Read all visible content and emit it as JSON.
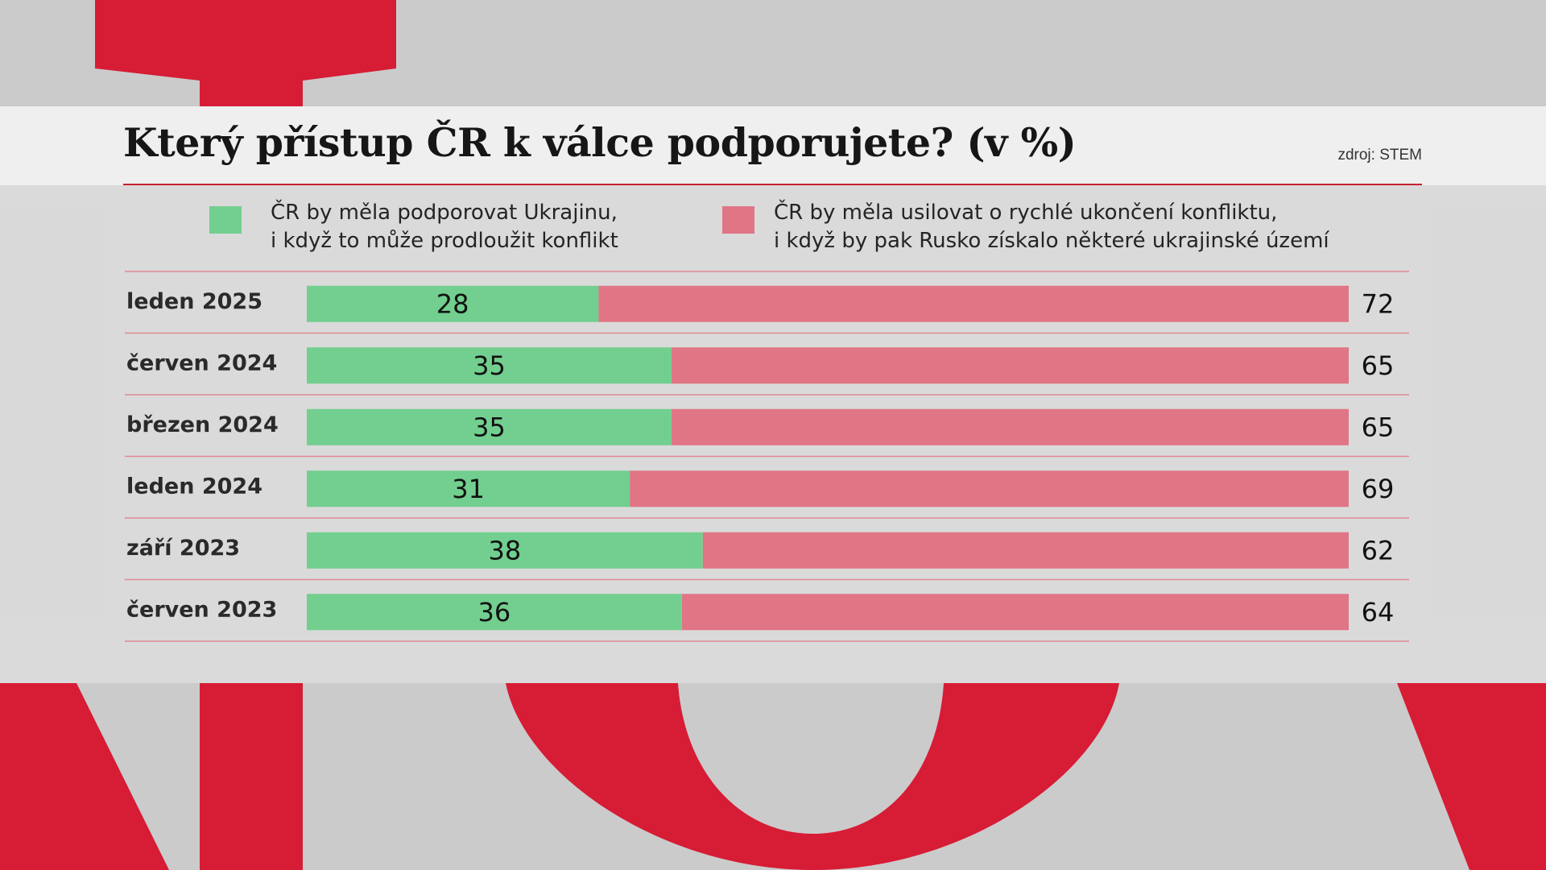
{
  "title": "Který přístup ČR k válce podporujete? (v %)",
  "source": "zdroj: STEM",
  "colors": {
    "support": "#72cf8f",
    "end": "#e07585",
    "brand_red": "#d71c36",
    "divider": "#e08a94"
  },
  "legend": [
    {
      "line1": "ČR by měla podporovat Ukrajinu,",
      "line2": "i když to může prodloužit konflikt",
      "color": "#72cf8f"
    },
    {
      "line1": "ČR by měla usilovat o rychlé ukončení konfliktu,",
      "line2": "i když by pak Rusko získalo některé ukrajinské území",
      "color": "#e07585"
    }
  ],
  "chart_data": {
    "type": "bar",
    "stacked": true,
    "orientation": "horizontal",
    "categories": [
      "leden 2025",
      "červen 2024",
      "březen 2024",
      "leden 2024",
      "září 2023",
      "červen 2023"
    ],
    "series": [
      {
        "name": "ČR by měla podporovat Ukrajinu, i když to může prodloužit konflikt",
        "values": [
          28,
          35,
          35,
          31,
          38,
          36
        ]
      },
      {
        "name": "ČR by měla usilovat o rychlé ukončení konfliktu, i když by pak Rusko získalo některé ukrajinské území",
        "values": [
          72,
          65,
          65,
          69,
          62,
          64
        ]
      }
    ],
    "title": "Který přístup ČR k válce podporujete? (v %)",
    "xlim": [
      0,
      100
    ]
  }
}
